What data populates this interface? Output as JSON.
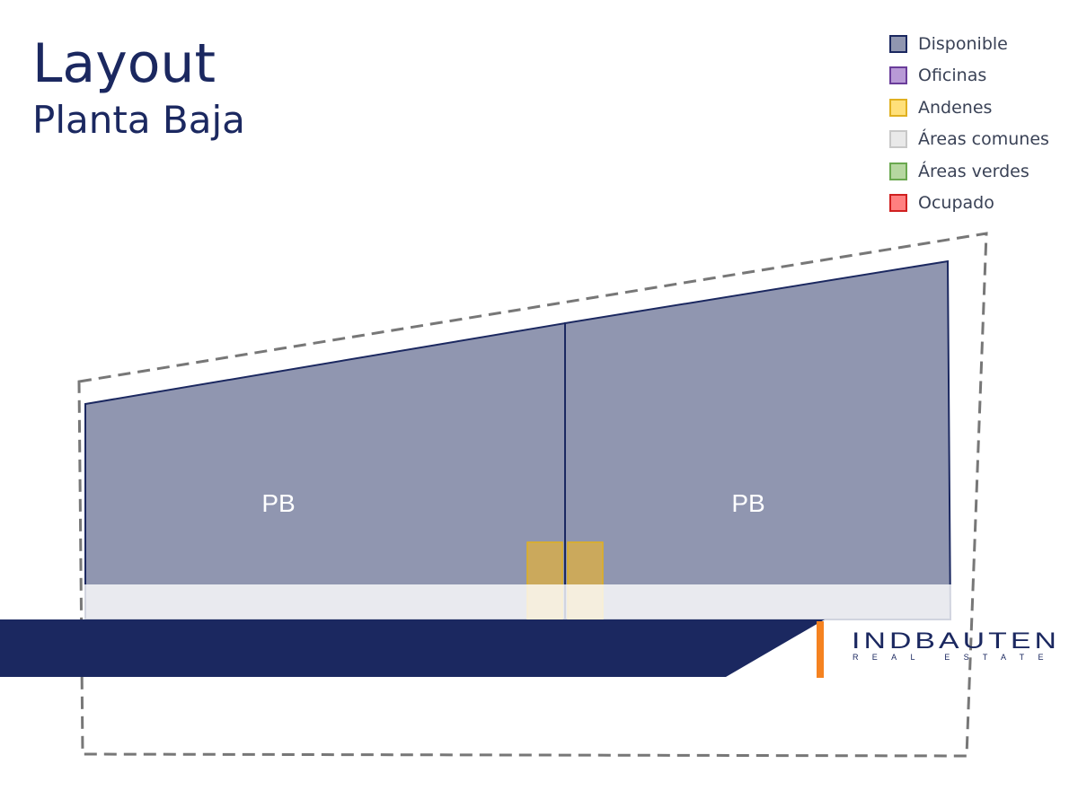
{
  "header": {
    "title": "Layout",
    "subtitle": "Planta Baja"
  },
  "legend": {
    "items": [
      {
        "label": "Disponible",
        "fill": "#9096b0",
        "border": "#1b2860"
      },
      {
        "label": "Oficinas",
        "fill": "#b89ad6",
        "border": "#6a3d9a"
      },
      {
        "label": "Andenes",
        "fill": "#ffe07a",
        "border": "#e0b020"
      },
      {
        "label": "Áreas comunes",
        "fill": "#e9e9e9",
        "border": "#c8c8c8"
      },
      {
        "label": "Áreas verdes",
        "fill": "#b6d7a0",
        "border": "#6aa84f"
      },
      {
        "label": "Ocupado",
        "fill": "#ff8080",
        "border": "#d02020"
      }
    ]
  },
  "plan": {
    "units": [
      {
        "label": "PB",
        "status": "Disponible"
      },
      {
        "label": "PB",
        "status": "Disponible"
      }
    ],
    "docks": [
      {
        "status": "Andenes"
      },
      {
        "status": "Andenes"
      }
    ]
  },
  "brand": {
    "name": "INDBAUTEN",
    "tagline": "REAL ESTATE",
    "primary_color": "#1b2860",
    "accent_color": "#f58220"
  }
}
